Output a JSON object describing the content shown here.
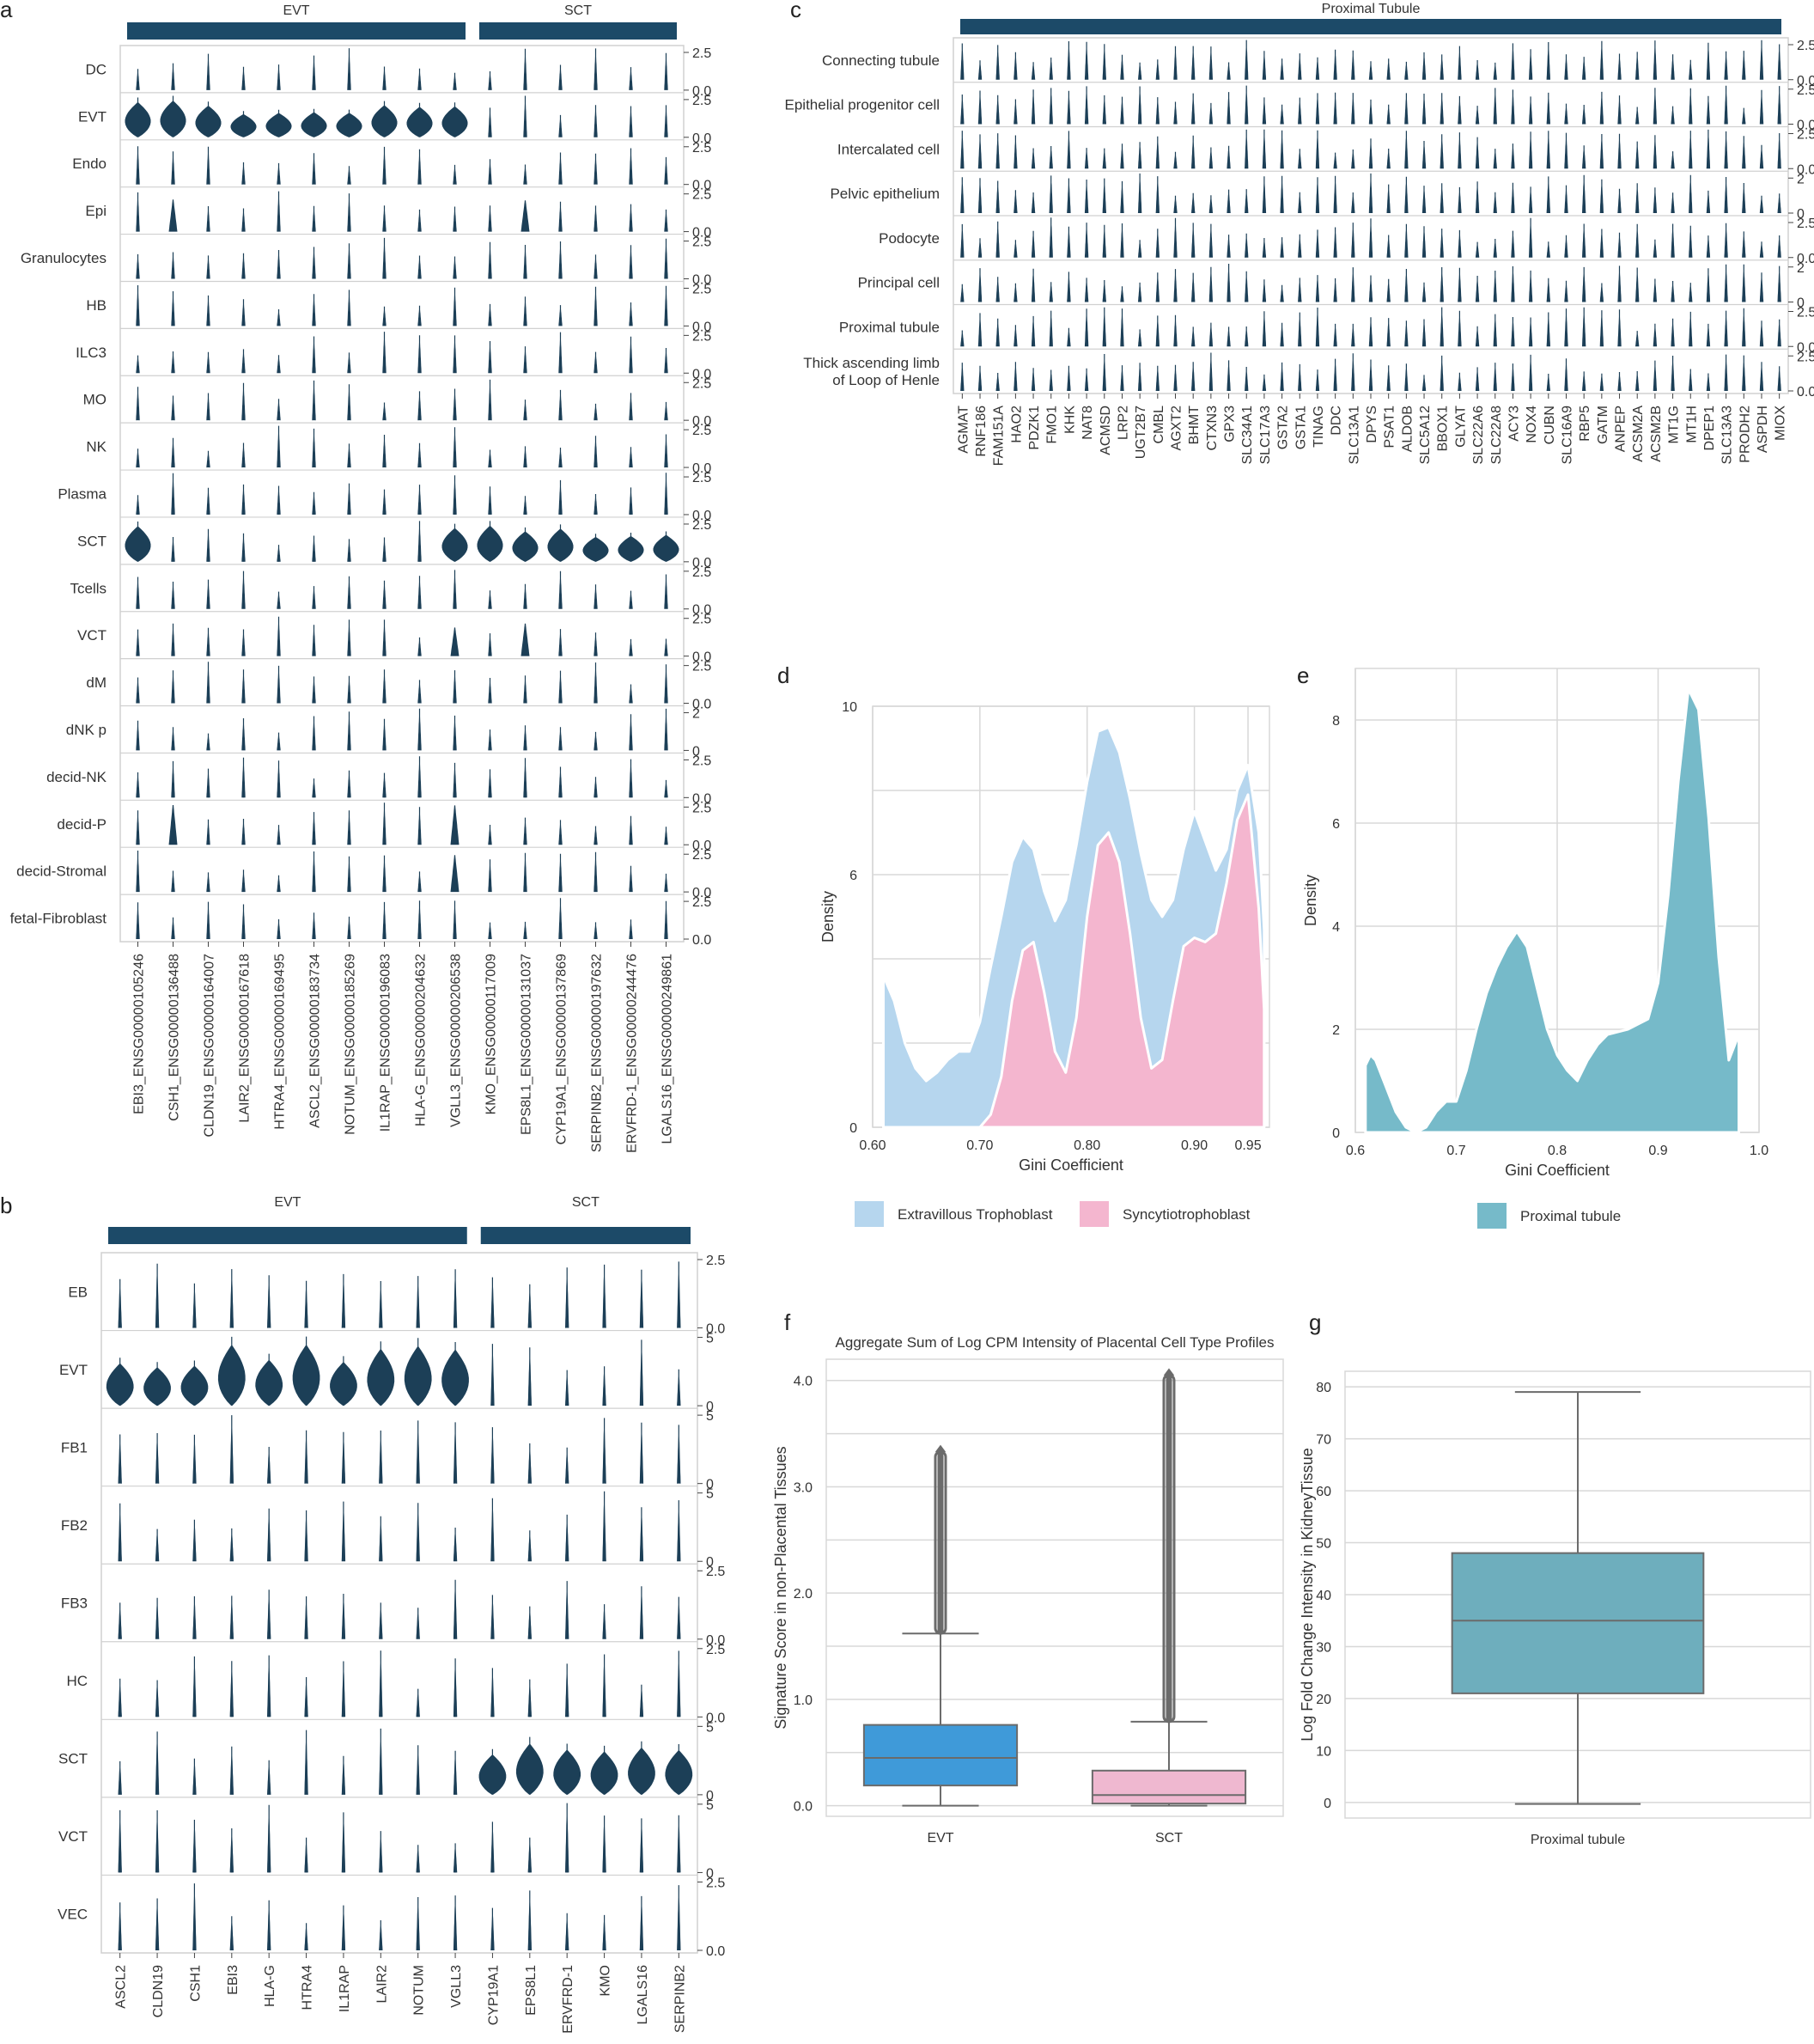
{
  "chart_data": [
    {
      "id": "a",
      "panel_label": "a",
      "type": "violin",
      "groups": [
        {
          "label": "EVT",
          "genes": [
            "EBI3_ENSG00000105246",
            "CSH1_ENSG00000136488",
            "CLDN19_ENSG00000164007",
            "LAIR2_ENSG00000167618",
            "HTRA4_ENSG00000169495",
            "ASCL2_ENSG00000183734",
            "NOTUM_ENSG00000185269",
            "IL1RAP_ENSG00000196083",
            "HLA-G_ENSG00000204632",
            "VGLL3_ENSG00000206538"
          ]
        },
        {
          "label": "SCT",
          "genes": [
            "KMO_ENSG00000117009",
            "EPS8L1_ENSG00000131037",
            "CYP19A1_ENSG00000137869",
            "SERPINB2_ENSG00000197632",
            "ERVFRD-1_ENSG00000244476",
            "LGALS16_ENSG00000249861"
          ]
        }
      ],
      "rows": [
        "DC",
        "EVT",
        "Endo",
        "Epi",
        "Granulocytes",
        "HB",
        "ILC3",
        "MO",
        "NK",
        "Plasma",
        "SCT",
        "Tcells",
        "VCT",
        "dM",
        "dNK p",
        "decid-NK",
        "decid-P",
        "decid-Stromal",
        "fetal-Fibroblast"
      ],
      "ytick_labels": [
        [
          "2.5",
          "0.0"
        ],
        [
          "2.5",
          "0.0"
        ],
        [
          "2.5",
          "0.0"
        ],
        [
          "2.5",
          "0.0"
        ],
        [
          "2.5",
          "0.0"
        ],
        [
          "2.5",
          "0.0"
        ],
        [
          "2.5",
          "0.0"
        ],
        [
          "2.5",
          "0.0"
        ],
        [
          "2.5",
          "0.0"
        ],
        [
          "2.5",
          "0.0"
        ],
        [
          "2.5",
          "0.0"
        ],
        [
          "2.5",
          "0.0"
        ],
        [
          "2.5",
          "0.0"
        ],
        [
          "2.5",
          "0.0"
        ],
        [
          "2",
          "0"
        ],
        [
          "2.5",
          "0.0"
        ],
        [
          "2.5",
          "0.0"
        ],
        [
          "2.5",
          "0.0"
        ],
        [
          "2.5",
          "0.0"
        ]
      ],
      "fat_violins": {
        "EVT": [
          0,
          1,
          2,
          3,
          4,
          5,
          6,
          7,
          8,
          9
        ],
        "SCT": [
          0,
          9,
          10,
          11,
          12,
          13,
          14,
          15
        ]
      },
      "medium_violins": {
        "Epi": [
          1,
          11
        ],
        "VCT": [
          9,
          11
        ],
        "decid-P": [
          1,
          9
        ],
        "decid-Stromal": [
          9
        ]
      },
      "violin_color": "#1c3f57"
    },
    {
      "id": "b",
      "panel_label": "b",
      "type": "violin",
      "groups": [
        {
          "label": "EVT",
          "genes": [
            "ASCL2",
            "CLDN19",
            "CSH1",
            "EBI3",
            "HLA-G",
            "HTRA4",
            "IL1RAP",
            "LAIR2",
            "NOTUM",
            "VGLL3"
          ]
        },
        {
          "label": "SCT",
          "genes": [
            "CYP19A1",
            "EPS8L1",
            "ERVFRD-1",
            "KMO",
            "LGALS16",
            "SERPINB2"
          ]
        }
      ],
      "rows": [
        "EB",
        "EVT",
        "FB1",
        "FB2",
        "FB3",
        "HC",
        "SCT",
        "VCT",
        "VEC"
      ],
      "ytick_labels": [
        [
          "2.5",
          "0.0"
        ],
        [
          "5",
          "0"
        ],
        [
          "5",
          "0"
        ],
        [
          "5",
          "0"
        ],
        [
          "2.5",
          "0.0"
        ],
        [
          "2.5",
          "0.0"
        ],
        [
          "5",
          "0"
        ],
        [
          "5",
          "0"
        ],
        [
          "2.5",
          "0.0"
        ]
      ],
      "fat_violins": {
        "EVT": [
          0,
          1,
          2,
          3,
          4,
          5,
          6,
          7,
          8,
          9
        ],
        "SCT": [
          10,
          11,
          12,
          13,
          14,
          15
        ]
      },
      "violin_color": "#1c3f57"
    },
    {
      "id": "c",
      "panel_label": "c",
      "type": "violin",
      "groups": [
        {
          "label": "Proximal Tubule",
          "genes": [
            "AGMAT",
            "RNF186",
            "FAM151A",
            "HAO2",
            "PDZK1",
            "FMO1",
            "KHK",
            "NAT8",
            "ACMSD",
            "LRP2",
            "UGT2B7",
            "CMBL",
            "AGXT2",
            "BHMT",
            "CTXN3",
            "GPX3",
            "SLC34A1",
            "SLC17A3",
            "GSTA2",
            "GSTA1",
            "TINAG",
            "DDC",
            "SLC13A1",
            "DPYS",
            "PSAT1",
            "ALDOB",
            "SLC5A12",
            "BBOX1",
            "GLYAT",
            "SLC22A6",
            "SLC22A8",
            "ACY3",
            "NOX4",
            "CUBN",
            "SLC16A9",
            "RBP5",
            "GATM",
            "ANPEP",
            "ACSM2A",
            "ACSM2B",
            "MT1G",
            "MT1H",
            "DPEP1",
            "SLC13A3",
            "PRODH2",
            "ASPDH",
            "MIOX"
          ]
        }
      ],
      "rows": [
        "Connecting tubule",
        "Epithelial progenitor cell",
        "Intercalated cell",
        "Pelvic epithelium",
        "Podocyte",
        "Principal cell",
        "Proximal tubule",
        "Thick ascending limb\nof Loop of Henle"
      ],
      "ytick_labels": [
        [
          "2.5",
          "0.0"
        ],
        [
          "2.5",
          "0.0"
        ],
        [
          "2.5",
          "0.0"
        ],
        [
          "2",
          "0"
        ],
        [
          "2.5",
          "0.0"
        ],
        [
          "2",
          "0"
        ],
        [
          "2.5",
          "0.0"
        ],
        [
          "2.5",
          "0.0"
        ]
      ],
      "violin_color": "#1c3f57"
    },
    {
      "id": "d",
      "panel_label": "d",
      "type": "area",
      "xlabel": "Gini Coefficient",
      "ylabel": "Density",
      "xlim": [
        0.6,
        0.97
      ],
      "ylim": [
        0,
        10
      ],
      "xticks": [
        0.6,
        0.7,
        0.8,
        0.9,
        0.95
      ],
      "xtick_labels": [
        "0.60",
        "0.70",
        "0.80",
        "0.90",
        "0.95"
      ],
      "yticks": [
        0,
        6,
        10
      ],
      "ytick_labels": [
        "0",
        "6",
        "10"
      ],
      "series": [
        {
          "name": "Extravillous Trophoblast",
          "color": "#b6d6ee",
          "x": [
            0.61,
            0.62,
            0.63,
            0.64,
            0.65,
            0.66,
            0.67,
            0.68,
            0.69,
            0.7,
            0.71,
            0.72,
            0.73,
            0.74,
            0.75,
            0.76,
            0.77,
            0.78,
            0.79,
            0.8,
            0.81,
            0.82,
            0.83,
            0.84,
            0.85,
            0.86,
            0.87,
            0.88,
            0.89,
            0.9,
            0.91,
            0.92,
            0.93,
            0.94,
            0.95,
            0.96,
            0.965
          ],
          "y": [
            3.6,
            3.0,
            2.0,
            1.4,
            1.1,
            1.3,
            1.6,
            1.8,
            1.8,
            2.5,
            3.8,
            5.0,
            6.3,
            6.9,
            6.6,
            5.6,
            4.9,
            5.4,
            6.7,
            8.2,
            9.4,
            9.5,
            8.9,
            7.8,
            6.5,
            5.4,
            5.0,
            5.4,
            6.6,
            7.5,
            6.8,
            6.1,
            6.6,
            8.0,
            8.6,
            7.0,
            4.7
          ]
        },
        {
          "name": "Syncytiotrophoblast",
          "color": "#f4b6cf",
          "x": [
            0.7,
            0.71,
            0.72,
            0.73,
            0.74,
            0.75,
            0.76,
            0.77,
            0.78,
            0.79,
            0.8,
            0.81,
            0.82,
            0.83,
            0.84,
            0.85,
            0.86,
            0.87,
            0.88,
            0.89,
            0.9,
            0.91,
            0.92,
            0.93,
            0.94,
            0.95,
            0.96,
            0.965
          ],
          "y": [
            0.0,
            0.3,
            1.2,
            3.0,
            4.2,
            4.4,
            3.2,
            1.8,
            1.3,
            2.6,
            5.0,
            6.7,
            7.0,
            6.3,
            4.6,
            2.6,
            1.4,
            1.6,
            3.0,
            4.3,
            4.5,
            4.4,
            4.6,
            5.8,
            7.3,
            7.9,
            5.2,
            2.8
          ]
        }
      ]
    },
    {
      "id": "e",
      "panel_label": "e",
      "type": "area",
      "xlabel": "Gini Coefficient",
      "ylabel": "Density",
      "xlim": [
        0.6,
        1.0
      ],
      "ylim": [
        0,
        9
      ],
      "xticks": [
        0.6,
        0.7,
        0.8,
        0.9,
        1.0
      ],
      "xtick_labels": [
        "0.6",
        "0.7",
        "0.8",
        "0.9",
        "1.0"
      ],
      "yticks": [
        0,
        2,
        4,
        6,
        8
      ],
      "ytick_labels": [
        "0",
        "2",
        "4",
        "6",
        "8"
      ],
      "series": [
        {
          "name": "Proximal tubule",
          "color": "#76bac9",
          "x": [
            0.61,
            0.615,
            0.62,
            0.63,
            0.64,
            0.65,
            0.66,
            0.67,
            0.68,
            0.69,
            0.7,
            0.71,
            0.72,
            0.73,
            0.74,
            0.75,
            0.76,
            0.77,
            0.78,
            0.79,
            0.8,
            0.81,
            0.82,
            0.83,
            0.84,
            0.85,
            0.86,
            0.87,
            0.88,
            0.89,
            0.9,
            0.91,
            0.92,
            0.93,
            0.94,
            0.95,
            0.96,
            0.97,
            0.98
          ],
          "y": [
            1.3,
            1.5,
            1.4,
            0.9,
            0.4,
            0.1,
            0.0,
            0.1,
            0.4,
            0.6,
            0.6,
            1.2,
            2.0,
            2.7,
            3.2,
            3.6,
            3.9,
            3.6,
            2.8,
            2.0,
            1.5,
            1.2,
            1.0,
            1.4,
            1.7,
            1.9,
            1.95,
            2.0,
            2.1,
            2.2,
            2.9,
            4.6,
            6.8,
            8.6,
            8.2,
            6.1,
            3.4,
            1.4,
            1.9
          ]
        }
      ]
    },
    {
      "id": "f",
      "panel_label": "f",
      "type": "box",
      "title": "Aggregate Sum of Log CPM Intensity of Placental Cell Type Profiles",
      "xlabel": "",
      "ylabel": "Signature Score in non-Placental Tissues",
      "ylim": [
        -0.1,
        4.2
      ],
      "yticks": [
        0.0,
        1.0,
        2.0,
        3.0,
        4.0
      ],
      "ytick_labels": [
        "0.0",
        "1.0",
        "2.0",
        "3.0",
        "4.0"
      ],
      "categories": [
        "EVT",
        "SCT"
      ],
      "boxes": [
        {
          "category": "EVT",
          "color": "#3f9ad9",
          "whisker_low": 0.0,
          "q1": 0.19,
          "median": 0.45,
          "q3": 0.76,
          "whisker_high": 1.62,
          "outlier_max": 3.33
        },
        {
          "category": "SCT",
          "color": "#efb8d0",
          "whisker_low": 0.0,
          "q1": 0.02,
          "median": 0.1,
          "q3": 0.33,
          "whisker_high": 0.79,
          "outlier_max": 4.05
        }
      ]
    },
    {
      "id": "g",
      "panel_label": "g",
      "type": "box",
      "xlabel": "",
      "ylabel": "Log Fold Change Intensity in KidneyTissue",
      "ylim": [
        -3,
        83
      ],
      "yticks": [
        0,
        10,
        20,
        30,
        40,
        50,
        60,
        70,
        80
      ],
      "ytick_labels": [
        "0",
        "10",
        "20",
        "30",
        "40",
        "50",
        "60",
        "70",
        "80"
      ],
      "categories": [
        "Proximal tubule"
      ],
      "boxes": [
        {
          "category": "Proximal tubule",
          "color": "#6eaebd",
          "whisker_low": -0.3,
          "q1": 21.0,
          "median": 35.0,
          "q3": 48.0,
          "whisker_high": 79.0
        }
      ]
    }
  ]
}
